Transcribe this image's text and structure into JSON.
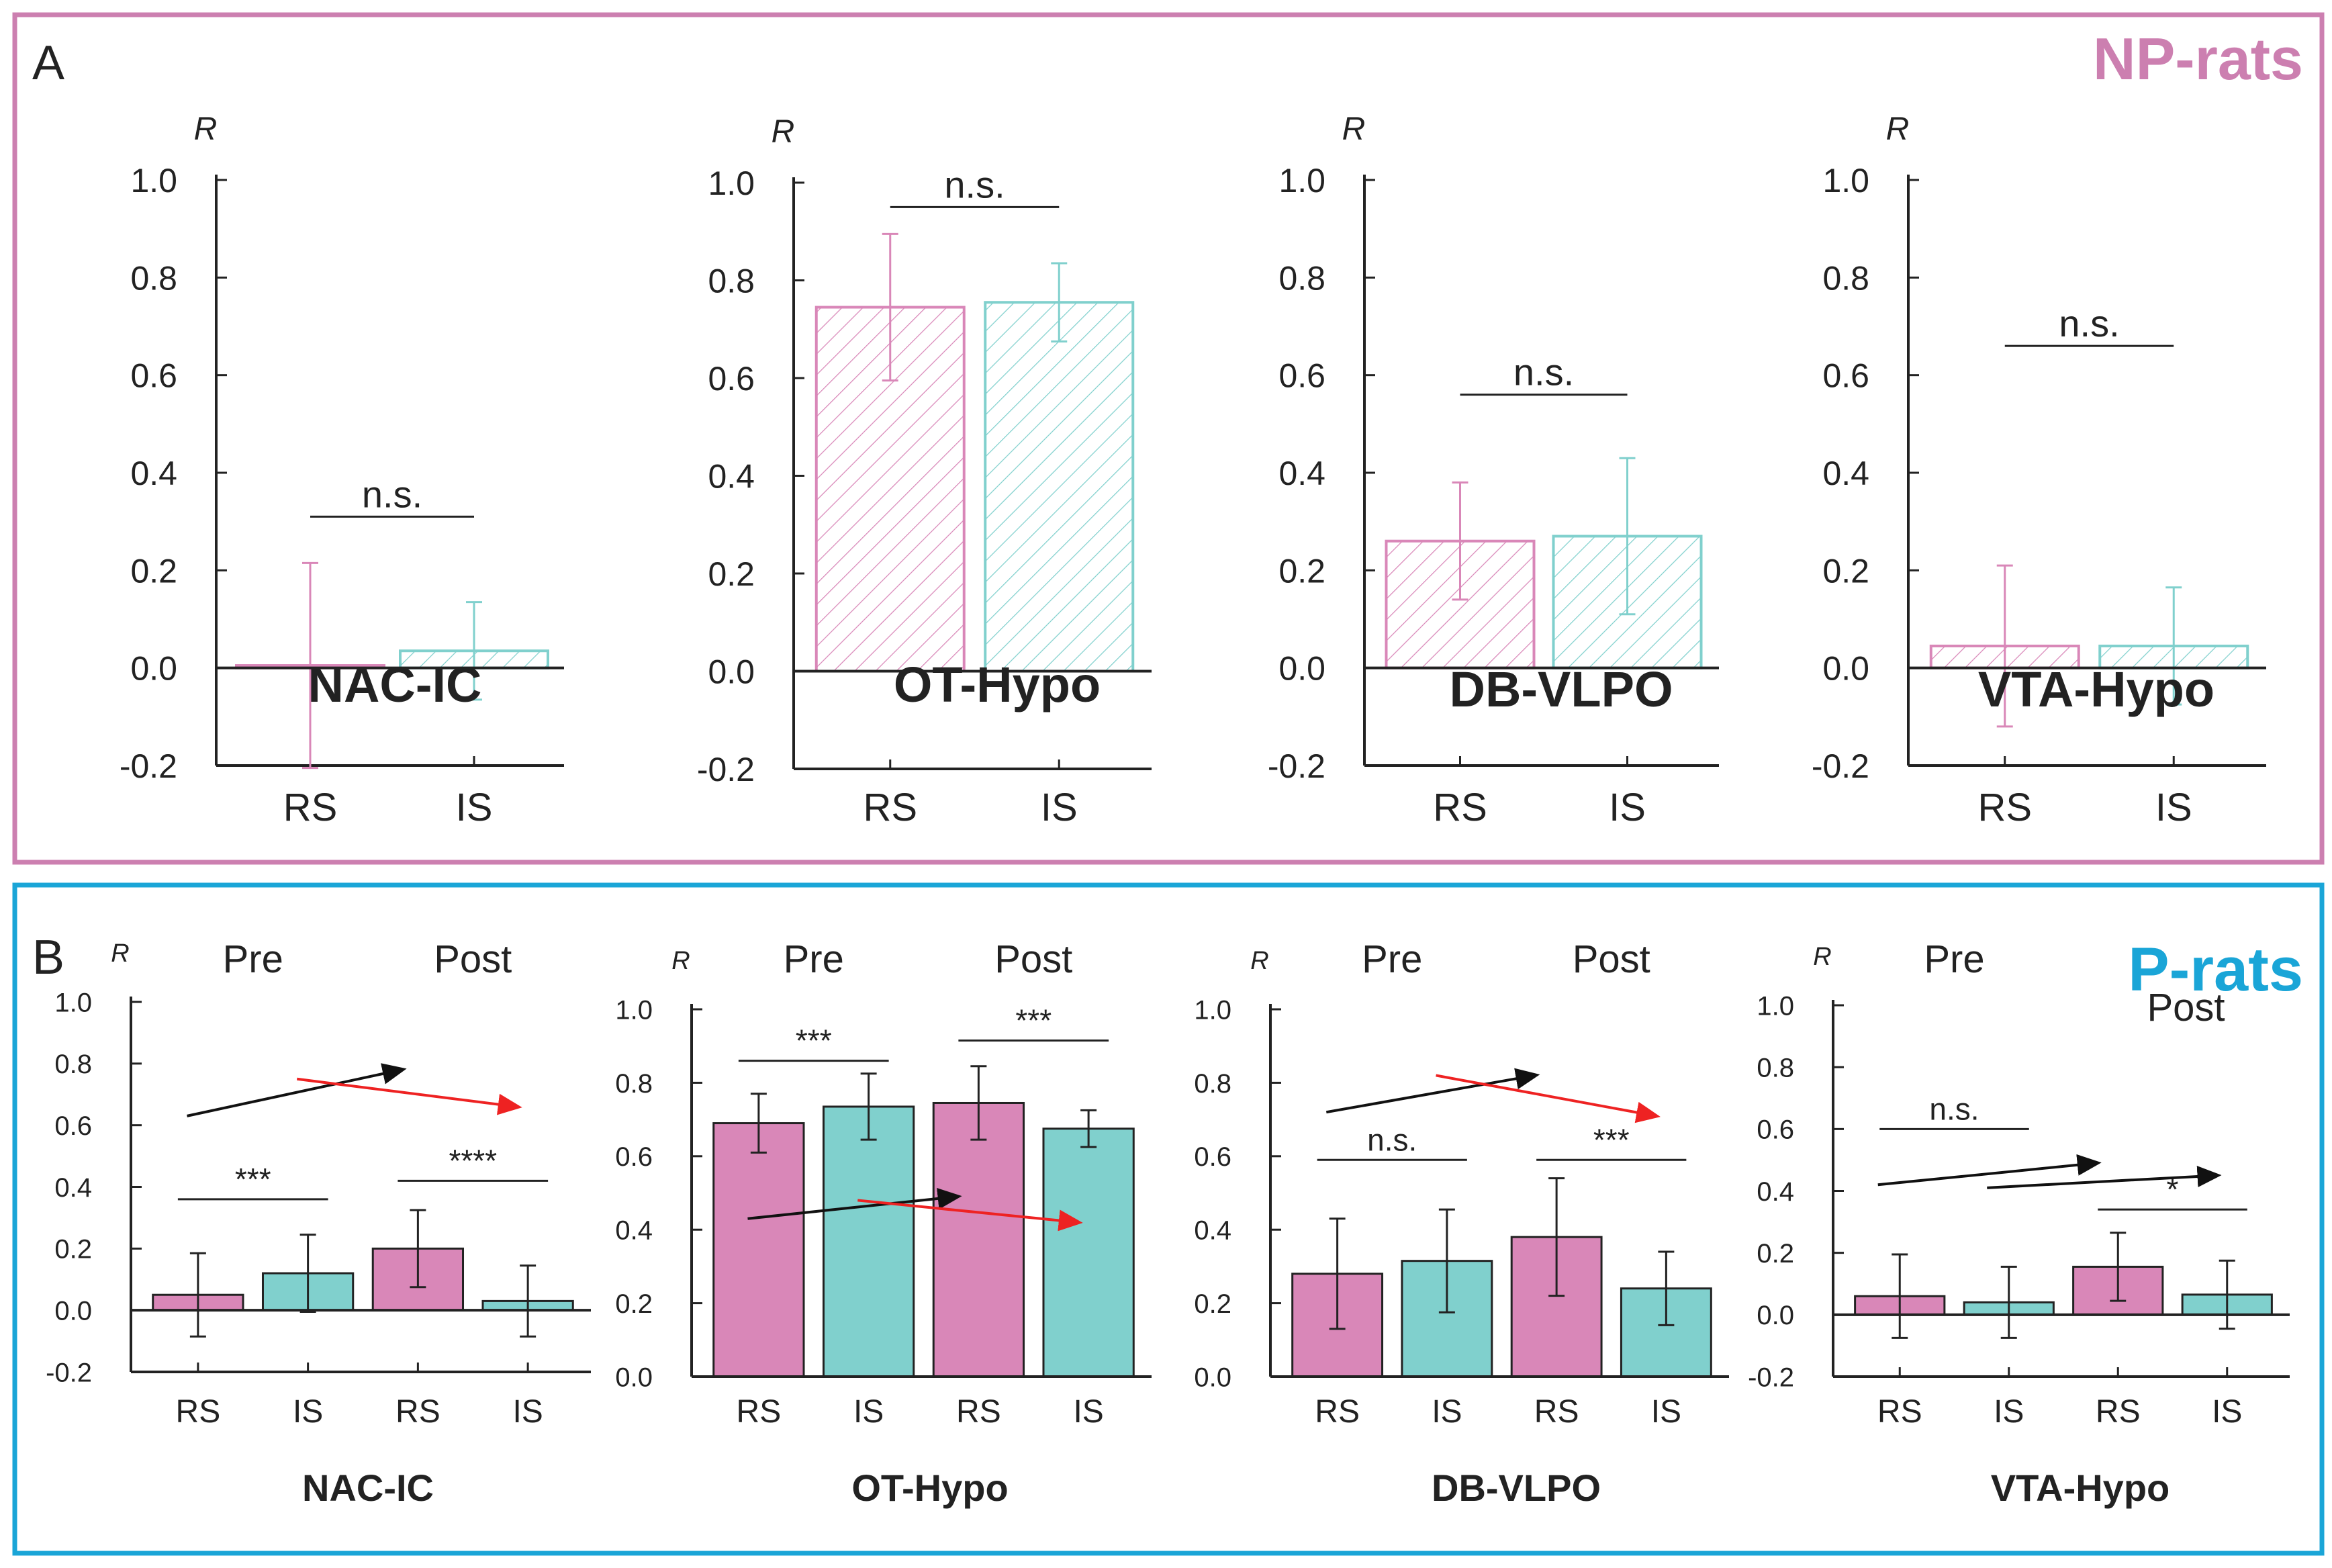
{
  "colors": {
    "rs": "#d987b8",
    "is": "#80d0cd",
    "np_frame": "#cc7fb0",
    "p_frame": "#1aa5d7",
    "inc_arrow": "#111111",
    "dec_arrow": "#ee2222",
    "axis": "#222222"
  },
  "panels": {
    "A": {
      "letter": "A",
      "group_label": "NP-rats"
    },
    "B": {
      "letter": "B",
      "group_label": "P-rats"
    }
  },
  "y_axis_symbol": "R",
  "chart_data": [
    {
      "id": "A1",
      "panel": "A",
      "type": "bar",
      "title": "NAC-IC",
      "ylabel": "R",
      "ylim": [
        -0.2,
        1.0
      ],
      "yticks": [
        "-0.2",
        "0.0",
        "0.2",
        "0.4",
        "0.6",
        "0.8",
        "1.0"
      ],
      "categories": [
        "RS",
        "IS"
      ],
      "values": [
        0.005,
        0.035
      ],
      "errors": [
        0.21,
        0.1
      ],
      "hatched": true,
      "significance": [
        {
          "between": [
            0,
            1
          ],
          "label": "n.s.",
          "y": 0.31
        }
      ]
    },
    {
      "id": "A2",
      "panel": "A",
      "type": "bar",
      "title": "OT-Hypo",
      "ylabel": "R",
      "ylim": [
        -0.2,
        1.0
      ],
      "yticks": [
        "-0.2",
        "0.0",
        "0.2",
        "0.4",
        "0.6",
        "0.8",
        "1.0"
      ],
      "categories": [
        "RS",
        "IS"
      ],
      "values": [
        0.745,
        0.755
      ],
      "errors": [
        0.15,
        0.08
      ],
      "hatched": true,
      "significance": [
        {
          "between": [
            0,
            1
          ],
          "label": "n.s.",
          "y": 0.95
        }
      ]
    },
    {
      "id": "A3",
      "panel": "A",
      "type": "bar",
      "title": "DB-VLPO",
      "ylabel": "R",
      "ylim": [
        -0.2,
        1.0
      ],
      "yticks": [
        "-0.2",
        "0.0",
        "0.2",
        "0.4",
        "0.6",
        "0.8",
        "1.0"
      ],
      "categories": [
        "RS",
        "IS"
      ],
      "values": [
        0.26,
        0.27
      ],
      "errors": [
        0.12,
        0.16
      ],
      "hatched": true,
      "significance": [
        {
          "between": [
            0,
            1
          ],
          "label": "n.s.",
          "y": 0.56
        }
      ]
    },
    {
      "id": "A4",
      "panel": "A",
      "type": "bar",
      "title": "VTA-Hypo",
      "ylabel": "R",
      "ylim": [
        -0.2,
        1.0
      ],
      "yticks": [
        "-0.2",
        "0.0",
        "0.2",
        "0.4",
        "0.6",
        "0.8",
        "1.0"
      ],
      "categories": [
        "RS",
        "IS"
      ],
      "values": [
        0.045,
        0.045
      ],
      "errors": [
        0.165,
        0.12
      ],
      "hatched": true,
      "significance": [
        {
          "between": [
            0,
            1
          ],
          "label": "n.s.",
          "y": 0.66
        }
      ]
    },
    {
      "id": "B1",
      "panel": "B",
      "type": "bar",
      "title": "NAC-IC",
      "ylabel": "R",
      "ylim": [
        -0.2,
        1.0
      ],
      "yticks": [
        "-0.2",
        "0.0",
        "0.2",
        "0.4",
        "0.6",
        "0.8",
        "1.0"
      ],
      "groups": [
        "Pre",
        "Post"
      ],
      "categories": [
        "RS",
        "IS",
        "RS",
        "IS"
      ],
      "values": [
        0.05,
        0.12,
        0.2,
        0.03
      ],
      "errors": [
        0.135,
        0.125,
        0.125,
        0.115
      ],
      "significance": [
        {
          "between": [
            0,
            1
          ],
          "label": "***",
          "y": 0.36
        },
        {
          "between": [
            2,
            3
          ],
          "label": "****",
          "y": 0.42
        }
      ],
      "trend_arrows": [
        {
          "kind": "increase",
          "from": [
            0.4,
            0.63
          ],
          "to": [
            2.35,
            0.78
          ]
        },
        {
          "kind": "decrease",
          "from": [
            1.4,
            0.75
          ],
          "to": [
            3.4,
            0.66
          ]
        }
      ]
    },
    {
      "id": "B2",
      "panel": "B",
      "type": "bar",
      "title": "OT-Hypo",
      "ylabel": "R",
      "ylim": [
        0.0,
        1.0
      ],
      "yticks": [
        "0.0",
        "0.2",
        "0.4",
        "0.6",
        "0.8",
        "1.0"
      ],
      "groups": [
        "Pre",
        "Post"
      ],
      "categories": [
        "RS",
        "IS",
        "RS",
        "IS"
      ],
      "values": [
        0.69,
        0.735,
        0.745,
        0.675
      ],
      "errors": [
        0.08,
        0.09,
        0.1,
        0.05
      ],
      "significance": [
        {
          "between": [
            0,
            1
          ],
          "label": "***",
          "y": 0.86
        },
        {
          "between": [
            2,
            3
          ],
          "label": "***",
          "y": 0.915
        }
      ],
      "trend_arrows": [
        {
          "kind": "increase",
          "from": [
            0.4,
            0.43
          ],
          "to": [
            2.3,
            0.49
          ]
        },
        {
          "kind": "decrease",
          "from": [
            1.4,
            0.48
          ],
          "to": [
            3.4,
            0.42
          ]
        }
      ]
    },
    {
      "id": "B3",
      "panel": "B",
      "type": "bar",
      "title": "DB-VLPO",
      "ylabel": "R",
      "ylim": [
        0.0,
        1.0
      ],
      "yticks": [
        "0.0",
        "0.2",
        "0.4",
        "0.6",
        "0.8",
        "1.0"
      ],
      "groups": [
        "Pre",
        "Post"
      ],
      "categories": [
        "RS",
        "IS",
        "RS",
        "IS"
      ],
      "values": [
        0.28,
        0.315,
        0.38,
        0.24
      ],
      "errors": [
        0.15,
        0.14,
        0.16,
        0.1
      ],
      "significance": [
        {
          "between": [
            0,
            1
          ],
          "label": "n.s.",
          "y": 0.59
        },
        {
          "between": [
            2,
            3
          ],
          "label": "***",
          "y": 0.59
        }
      ],
      "trend_arrows": [
        {
          "kind": "increase",
          "from": [
            0.4,
            0.72
          ],
          "to": [
            2.3,
            0.82
          ]
        },
        {
          "kind": "decrease",
          "from": [
            1.4,
            0.82
          ],
          "to": [
            3.4,
            0.71
          ]
        }
      ]
    },
    {
      "id": "B4",
      "panel": "B",
      "type": "bar",
      "title": "VTA-Hypo",
      "ylabel": "R",
      "ylim": [
        -0.2,
        1.0
      ],
      "yticks": [
        "-0.2",
        "0.0",
        "0.2",
        "0.4",
        "0.6",
        "0.8",
        "1.0"
      ],
      "groups": [
        "Pre",
        "Post"
      ],
      "categories": [
        "RS",
        "IS",
        "RS",
        "IS"
      ],
      "values": [
        0.06,
        0.04,
        0.155,
        0.065
      ],
      "errors": [
        0.135,
        0.115,
        0.11,
        0.11
      ],
      "significance": [
        {
          "between": [
            0,
            1
          ],
          "label": "n.s.",
          "y": 0.6
        },
        {
          "between": [
            2,
            3
          ],
          "label": "*",
          "y": 0.34
        }
      ],
      "trend_arrows": [
        {
          "kind": "increase",
          "from": [
            0.3,
            0.42
          ],
          "to": [
            2.3,
            0.49
          ]
        },
        {
          "kind": "increase",
          "from": [
            1.3,
            0.41
          ],
          "to": [
            3.4,
            0.45
          ]
        }
      ]
    }
  ]
}
